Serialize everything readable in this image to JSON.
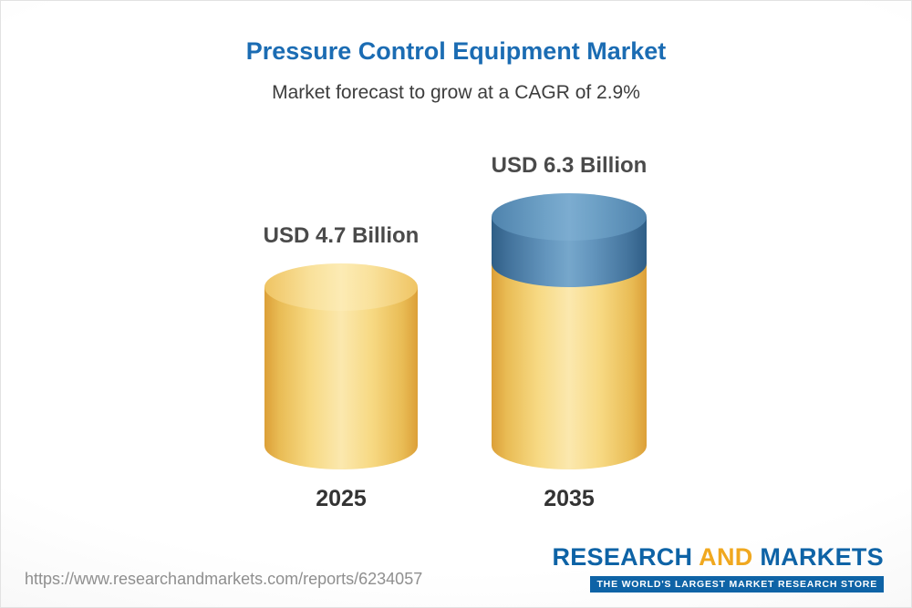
{
  "chart_data": {
    "type": "bar",
    "bar_style": "3d-cylinder",
    "title": "Pressure Control Equipment Market",
    "subtitle": "Market forecast to grow at a CAGR of 2.9%",
    "categories": [
      "2025",
      "2035"
    ],
    "values": [
      4.7,
      6.3
    ],
    "value_labels": [
      "USD 4.7 Billion",
      "USD 6.3 Billion"
    ],
    "unit": "USD Billion",
    "cagr_pct": 2.9,
    "legend": "off",
    "grid": "off",
    "colors": {
      "base_segment": "#F2C963",
      "growth_segment": "#5D92BA",
      "title": "#1B6CB3"
    }
  },
  "footer": {
    "report_url": "https://www.researchandmarkets.com/reports/6234057",
    "logo": {
      "word1": "RESEARCH",
      "word2": "AND",
      "word3": "MARKETS",
      "tagline": "THE WORLD'S LARGEST MARKET RESEARCH STORE"
    }
  }
}
